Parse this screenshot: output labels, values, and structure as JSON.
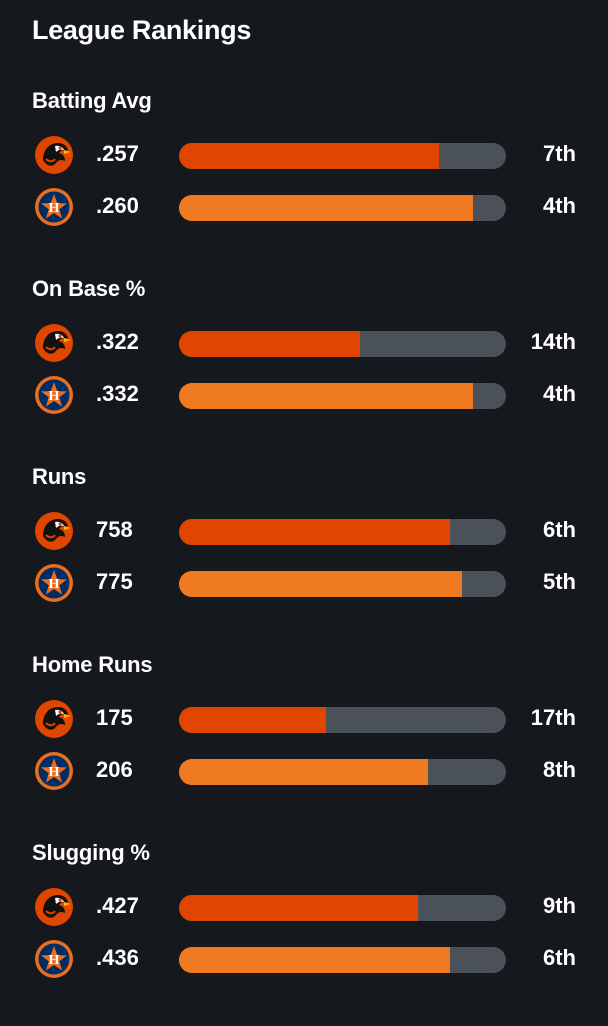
{
  "page_title": "League Rankings",
  "teams": [
    {
      "key": "orioles",
      "logo_icon": "orioles-bird-logo-icon",
      "bar_color": "#e04600"
    },
    {
      "key": "astros",
      "logo_icon": "astros-star-logo-icon",
      "bar_color": "#ef7a22"
    }
  ],
  "track_color": "#4b5158",
  "sections": [
    {
      "title": "Batting Avg",
      "rows": [
        {
          "value": ".257",
          "rank": "7th",
          "fill_fraction": 0.795
        },
        {
          "value": ".260",
          "rank": "4th",
          "fill_fraction": 0.9
        }
      ]
    },
    {
      "title": "On Base %",
      "rows": [
        {
          "value": ".322",
          "rank": "14th",
          "fill_fraction": 0.555
        },
        {
          "value": ".332",
          "rank": "4th",
          "fill_fraction": 0.9
        }
      ]
    },
    {
      "title": "Runs",
      "rows": [
        {
          "value": "758",
          "rank": "6th",
          "fill_fraction": 0.83
        },
        {
          "value": "775",
          "rank": "5th",
          "fill_fraction": 0.865
        }
      ]
    },
    {
      "title": "Home Runs",
      "rows": [
        {
          "value": "175",
          "rank": "17th",
          "fill_fraction": 0.45
        },
        {
          "value": "206",
          "rank": "8th",
          "fill_fraction": 0.76
        }
      ]
    },
    {
      "title": "Slugging %",
      "rows": [
        {
          "value": ".427",
          "rank": "9th",
          "fill_fraction": 0.73
        },
        {
          "value": ".436",
          "rank": "6th",
          "fill_fraction": 0.83
        }
      ]
    }
  ]
}
